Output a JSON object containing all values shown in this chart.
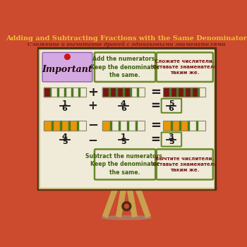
{
  "title_en": "Adding and Subtracting Fractions with the Same Denominator",
  "title_ru": "Сложение и вычитание дробей с одинаковыми знаменателями",
  "bg_color": "#cc4a2e",
  "board_bg": "#f0ead8",
  "board_border_outer": "#4a2e10",
  "board_border_inner": "#c8b878",
  "easel_color": "#c8a050",
  "easel_dark": "#8a6020",
  "add_text_en": "Add the numerators.\nKeep the denominator\nthe same.",
  "add_text_ru": "Сложите числители.\nОставьте знаменатель\nтаким же.",
  "sub_text_en": "Subtract the numerators.\nKeep the denominator\nthe same.",
  "sub_text_ru": "Вычтите числители.\nОставьте знаменатель\nтаким же.",
  "important_bg": "#d4a8e0",
  "text_box_border_green": "#6a8a2a",
  "text_box_border_dark": "#5a7a1a",
  "dark_red": "#7a1515",
  "orange": "#e8960a",
  "green_stripe": "#4a7a20",
  "title_color": "#f0c030",
  "title_ru_color": "#7a2010",
  "shadow_color": "#999988"
}
